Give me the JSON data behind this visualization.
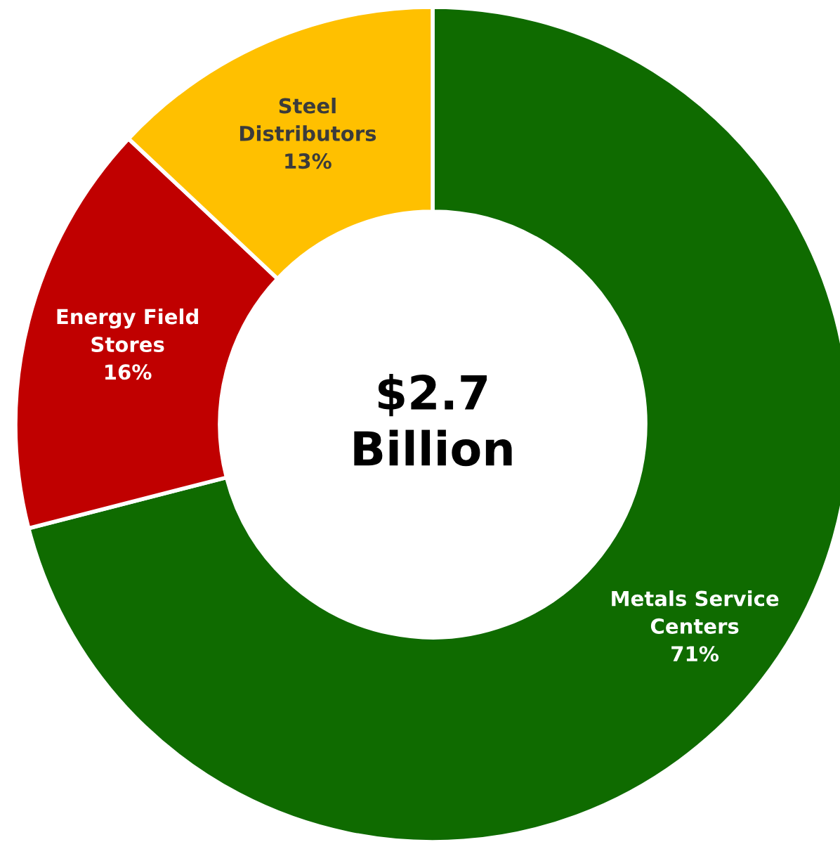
{
  "chart_data": {
    "type": "donut",
    "categories": [
      "Metals Service\nCenters",
      "Energy Field\nStores",
      "Steel\nDistributors"
    ],
    "values": [
      71,
      16,
      13
    ],
    "value_labels": [
      "71%",
      "16%",
      "13%"
    ],
    "colors": [
      "#0f6b00",
      "#c00000",
      "#ffc000"
    ],
    "annotations": [
      "$2.7\nBillion"
    ]
  }
}
